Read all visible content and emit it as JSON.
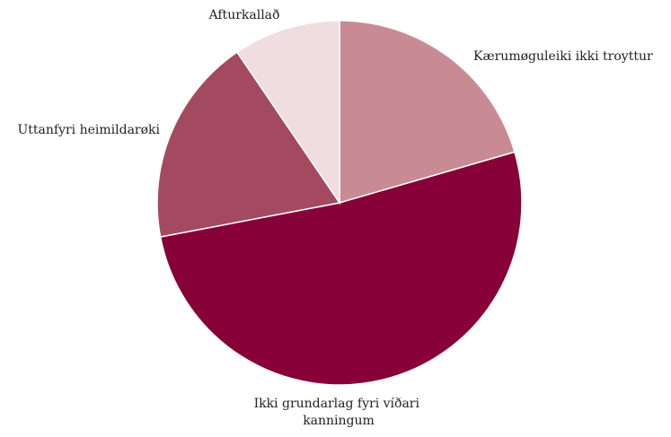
{
  "chart_data": {
    "type": "pie",
    "title": "",
    "start_angle_deg": 0,
    "direction": "clockwise",
    "slices": [
      {
        "label": "Kærumøguleiki ikki troyttur",
        "value": 20.5,
        "color": "#c98b93"
      },
      {
        "label": "Ikki grundarlag fyri víðari kanningum",
        "value": 51.5,
        "color": "#870038"
      },
      {
        "label": "Uttanfyri heimildarøki",
        "value": 18.5,
        "color": "#a44a60"
      },
      {
        "label": "Afturkallað",
        "value": 9.5,
        "color": "#f0dde0"
      }
    ]
  }
}
